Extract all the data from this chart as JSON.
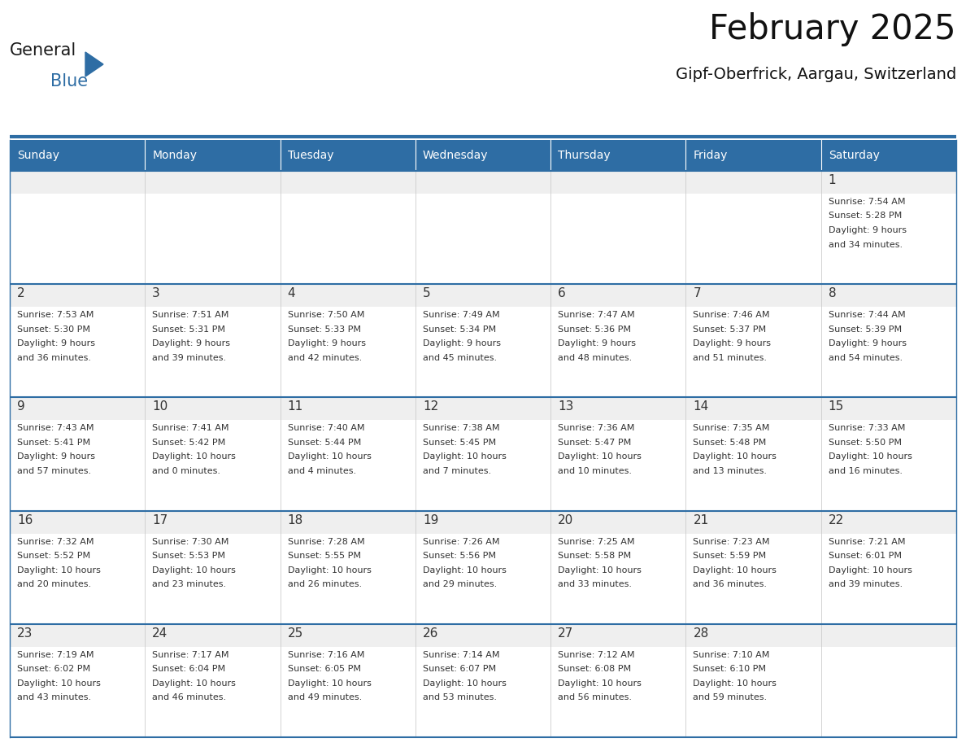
{
  "title": "February 2025",
  "subtitle": "Gipf-Oberfrick, Aargau, Switzerland",
  "header_color": "#2E6DA4",
  "header_text_color": "#FFFFFF",
  "cell_bg_white": "#FFFFFF",
  "cell_top_strip_color": "#EFEFEF",
  "week_border_color": "#2E6DA4",
  "col_border_color": "#CCCCCC",
  "day_number_color": "#333333",
  "text_color": "#333333",
  "weekdays": [
    "Sunday",
    "Monday",
    "Tuesday",
    "Wednesday",
    "Thursday",
    "Friday",
    "Saturday"
  ],
  "calendar_data": [
    [
      null,
      null,
      null,
      null,
      null,
      null,
      {
        "day": 1,
        "sunrise": "7:54 AM",
        "sunset": "5:28 PM",
        "daylight": "9 hours and 34 minutes."
      }
    ],
    [
      {
        "day": 2,
        "sunrise": "7:53 AM",
        "sunset": "5:30 PM",
        "daylight": "9 hours and 36 minutes."
      },
      {
        "day": 3,
        "sunrise": "7:51 AM",
        "sunset": "5:31 PM",
        "daylight": "9 hours and 39 minutes."
      },
      {
        "day": 4,
        "sunrise": "7:50 AM",
        "sunset": "5:33 PM",
        "daylight": "9 hours and 42 minutes."
      },
      {
        "day": 5,
        "sunrise": "7:49 AM",
        "sunset": "5:34 PM",
        "daylight": "9 hours and 45 minutes."
      },
      {
        "day": 6,
        "sunrise": "7:47 AM",
        "sunset": "5:36 PM",
        "daylight": "9 hours and 48 minutes."
      },
      {
        "day": 7,
        "sunrise": "7:46 AM",
        "sunset": "5:37 PM",
        "daylight": "9 hours and 51 minutes."
      },
      {
        "day": 8,
        "sunrise": "7:44 AM",
        "sunset": "5:39 PM",
        "daylight": "9 hours and 54 minutes."
      }
    ],
    [
      {
        "day": 9,
        "sunrise": "7:43 AM",
        "sunset": "5:41 PM",
        "daylight": "9 hours and 57 minutes."
      },
      {
        "day": 10,
        "sunrise": "7:41 AM",
        "sunset": "5:42 PM",
        "daylight": "10 hours and 0 minutes."
      },
      {
        "day": 11,
        "sunrise": "7:40 AM",
        "sunset": "5:44 PM",
        "daylight": "10 hours and 4 minutes."
      },
      {
        "day": 12,
        "sunrise": "7:38 AM",
        "sunset": "5:45 PM",
        "daylight": "10 hours and 7 minutes."
      },
      {
        "day": 13,
        "sunrise": "7:36 AM",
        "sunset": "5:47 PM",
        "daylight": "10 hours and 10 minutes."
      },
      {
        "day": 14,
        "sunrise": "7:35 AM",
        "sunset": "5:48 PM",
        "daylight": "10 hours and 13 minutes."
      },
      {
        "day": 15,
        "sunrise": "7:33 AM",
        "sunset": "5:50 PM",
        "daylight": "10 hours and 16 minutes."
      }
    ],
    [
      {
        "day": 16,
        "sunrise": "7:32 AM",
        "sunset": "5:52 PM",
        "daylight": "10 hours and 20 minutes."
      },
      {
        "day": 17,
        "sunrise": "7:30 AM",
        "sunset": "5:53 PM",
        "daylight": "10 hours and 23 minutes."
      },
      {
        "day": 18,
        "sunrise": "7:28 AM",
        "sunset": "5:55 PM",
        "daylight": "10 hours and 26 minutes."
      },
      {
        "day": 19,
        "sunrise": "7:26 AM",
        "sunset": "5:56 PM",
        "daylight": "10 hours and 29 minutes."
      },
      {
        "day": 20,
        "sunrise": "7:25 AM",
        "sunset": "5:58 PM",
        "daylight": "10 hours and 33 minutes."
      },
      {
        "day": 21,
        "sunrise": "7:23 AM",
        "sunset": "5:59 PM",
        "daylight": "10 hours and 36 minutes."
      },
      {
        "day": 22,
        "sunrise": "7:21 AM",
        "sunset": "6:01 PM",
        "daylight": "10 hours and 39 minutes."
      }
    ],
    [
      {
        "day": 23,
        "sunrise": "7:19 AM",
        "sunset": "6:02 PM",
        "daylight": "10 hours and 43 minutes."
      },
      {
        "day": 24,
        "sunrise": "7:17 AM",
        "sunset": "6:04 PM",
        "daylight": "10 hours and 46 minutes."
      },
      {
        "day": 25,
        "sunrise": "7:16 AM",
        "sunset": "6:05 PM",
        "daylight": "10 hours and 49 minutes."
      },
      {
        "day": 26,
        "sunrise": "7:14 AM",
        "sunset": "6:07 PM",
        "daylight": "10 hours and 53 minutes."
      },
      {
        "day": 27,
        "sunrise": "7:12 AM",
        "sunset": "6:08 PM",
        "daylight": "10 hours and 56 minutes."
      },
      {
        "day": 28,
        "sunrise": "7:10 AM",
        "sunset": "6:10 PM",
        "daylight": "10 hours and 59 minutes."
      },
      null
    ]
  ],
  "logo_text_general": "General",
  "logo_text_blue": "Blue",
  "logo_color_general": "#1a1a1a",
  "logo_color_blue": "#2E6DA4",
  "fig_width": 11.88,
  "fig_height": 9.18,
  "dpi": 100
}
